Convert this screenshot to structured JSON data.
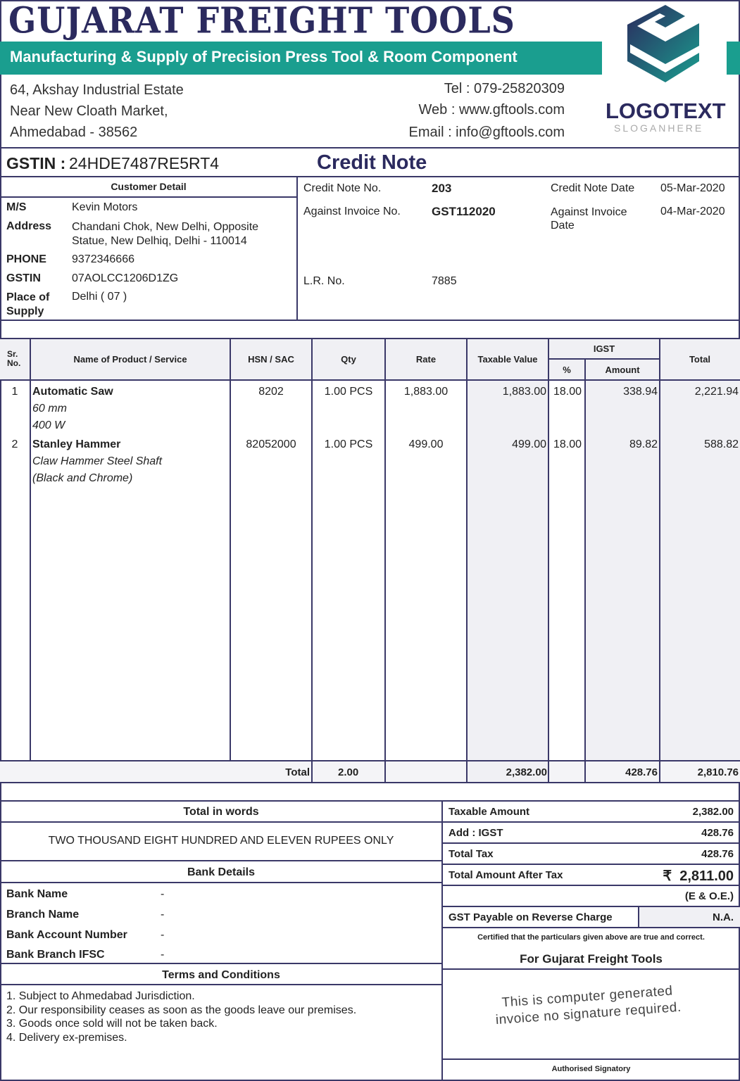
{
  "company": {
    "name": "GUJARAT FREIGHT TOOLS",
    "tagline": "Manufacturing & Supply of Precision Press Tool & Room Component",
    "address": [
      "64, Akshay Industrial Estate",
      "Near New Cloath Market,",
      "Ahmedabad - 38562"
    ],
    "tel": "Tel : 079-25820309",
    "web": "Web : www.gftools.com",
    "email": "Email : info@gftools.com",
    "logo_text": "LOGOTEXT",
    "logo_slogan": "SLOGANHERE",
    "gstin_label": "GSTIN :",
    "gstin": "24HDE7487RE5RT4"
  },
  "colors": {
    "navy": "#2b2a5e",
    "teal": "#1a9e8f"
  },
  "doc_title": "Credit Note",
  "customer": {
    "header": "Customer Detail",
    "rows": [
      {
        "label": "M/S",
        "value": "Kevin Motors"
      },
      {
        "label": "Address",
        "value": "Chandani Chok, New Delhi, Opposite Statue, New Delhiq, Delhi - 110014"
      },
      {
        "label": "PHONE",
        "value": "9372346666"
      },
      {
        "label": "GSTIN",
        "value": "07AOLCC1206D1ZG"
      },
      {
        "label": "Place of Supply",
        "value": "Delhi ( 07 )"
      }
    ]
  },
  "info": {
    "cn_no_label": "Credit Note No.",
    "cn_no": "203",
    "cn_date_label": "Credit Note Date",
    "cn_date": "05-Mar-2020",
    "inv_no_label": "Against Invoice No.",
    "inv_no": "GST112020",
    "inv_date_label": "Against Invoice Date",
    "inv_date": "04-Mar-2020",
    "lr_label": "L.R. No.",
    "lr": "7885"
  },
  "table": {
    "headers": {
      "sr": "Sr. No.",
      "name": "Name of Product / Service",
      "hsn": "HSN / SAC",
      "qty": "Qty",
      "rate": "Rate",
      "taxable": "Taxable Value",
      "igst": "IGST",
      "pct": "%",
      "amount": "Amount",
      "total": "Total"
    },
    "rows": [
      {
        "sr": "1",
        "name": "Automatic Saw",
        "desc": [
          "60 mm",
          "400 W"
        ],
        "hsn": "8202",
        "qty": "1.00 PCS",
        "rate": "1,883.00",
        "taxable": "1,883.00",
        "pct": "18.00",
        "amount": "338.94",
        "total": "2,221.94"
      },
      {
        "sr": "2",
        "name": "Stanley Hammer",
        "desc": [
          "Claw Hammer Steel Shaft",
          "(Black and Chrome)"
        ],
        "hsn": "82052000",
        "qty": "1.00 PCS",
        "rate": "499.00",
        "taxable": "499.00",
        "pct": "18.00",
        "amount": "89.82",
        "total": "588.82"
      }
    ],
    "footer": {
      "label": "Total",
      "qty": "2.00",
      "taxable": "2,382.00",
      "amount": "428.76",
      "total": "2,810.76"
    }
  },
  "words": {
    "header": "Total in words",
    "text": "TWO THOUSAND EIGHT HUNDRED AND ELEVEN RUPEES ONLY"
  },
  "bank": {
    "header": "Bank Details",
    "rows": [
      {
        "label": "Bank Name",
        "value": "-"
      },
      {
        "label": "Branch Name",
        "value": "-"
      },
      {
        "label": "Bank Account Number",
        "value": "-"
      },
      {
        "label": "Bank Branch IFSC",
        "value": "-"
      }
    ]
  },
  "terms": {
    "header": "Terms and Conditions",
    "items": [
      "1. Subject to Ahmedabad Jurisdiction.",
      "2. Our responsibility ceases as soon as the goods leave our premises.",
      "3. Goods once sold will not be taken back.",
      "4. Delivery ex-premises."
    ]
  },
  "summary": {
    "rows": [
      {
        "label": "Taxable Amount",
        "value": "2,382.00"
      },
      {
        "label": "Add : IGST",
        "value": "428.76"
      },
      {
        "label": "Total Tax",
        "value": "428.76"
      }
    ],
    "grand_label": "Total Amount After Tax",
    "grand_value": "₹  2,811.00",
    "eoe": "(E & O.E.)",
    "rc_label": "GST Payable on Reverse Charge",
    "rc_value": "N.A.",
    "certified": "Certified that the particulars given above are true and correct.",
    "for": "For Gujarat Freight Tools",
    "stamp": "This is computer generated invoice no signature required.",
    "signatory": "Authorised Signatory"
  }
}
